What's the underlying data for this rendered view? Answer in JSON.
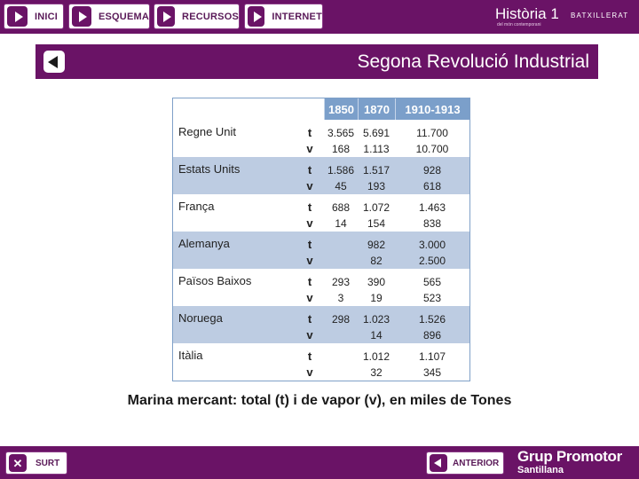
{
  "nav": {
    "items": [
      {
        "label": "INICI"
      },
      {
        "label": "ESQUEMA"
      },
      {
        "label": "RECURSOS"
      },
      {
        "label": "INTERNET"
      }
    ]
  },
  "brand": {
    "title": "Història 1",
    "level": "BATXILLERAT",
    "subtitle": "del món contemporani"
  },
  "page": {
    "title": "Segona Revolució Industrial"
  },
  "table": {
    "columns": [
      "1850",
      "1870",
      "1910-1913"
    ],
    "rows": [
      {
        "country": "Regne Unit",
        "t": "t",
        "v": "v",
        "c1": [
          "3.565",
          "168"
        ],
        "c2": [
          "5.691",
          "1.113"
        ],
        "c3": [
          "11.700",
          "10.700"
        ]
      },
      {
        "country": "Estats Units",
        "t": "t",
        "v": "v",
        "c1": [
          "1.586",
          "45"
        ],
        "c2": [
          "1.517",
          "193"
        ],
        "c3": [
          "928",
          "618"
        ]
      },
      {
        "country": "França",
        "t": "t",
        "v": "v",
        "c1": [
          "688",
          "14"
        ],
        "c2": [
          "1.072",
          "154"
        ],
        "c3": [
          "1.463",
          "838"
        ]
      },
      {
        "country": "Alemanya",
        "t": "t",
        "v": "v",
        "c1": [
          "",
          ""
        ],
        "c2": [
          "982",
          "82"
        ],
        "c3": [
          "3.000",
          "2.500"
        ]
      },
      {
        "country": "Països Baixos",
        "t": "t",
        "v": "v",
        "c1": [
          "293",
          "3"
        ],
        "c2": [
          "390",
          "19"
        ],
        "c3": [
          "565",
          "523"
        ]
      },
      {
        "country": "Noruega",
        "t": "t",
        "v": "v",
        "c1": [
          "298",
          ""
        ],
        "c2": [
          "1.023",
          "14"
        ],
        "c3": [
          "1.526",
          "896"
        ]
      },
      {
        "country": "Itàlia",
        "t": "t",
        "v": "v",
        "c1": [
          "",
          ""
        ],
        "c2": [
          "1.012",
          "32"
        ],
        "c3": [
          "1.107",
          "345"
        ]
      }
    ]
  },
  "caption": "Marina mercant: total (t) i de vapor (v), en miles de Tones",
  "footer": {
    "exit_label": "SURT",
    "prev_label": "ANTERIOR",
    "logo_line1": "Grup Promotor",
    "logo_line2": "Santillana"
  },
  "colors": {
    "accent": "#6a1366",
    "table_header": "#7b9fca",
    "row_shade": "#bdcce2"
  }
}
